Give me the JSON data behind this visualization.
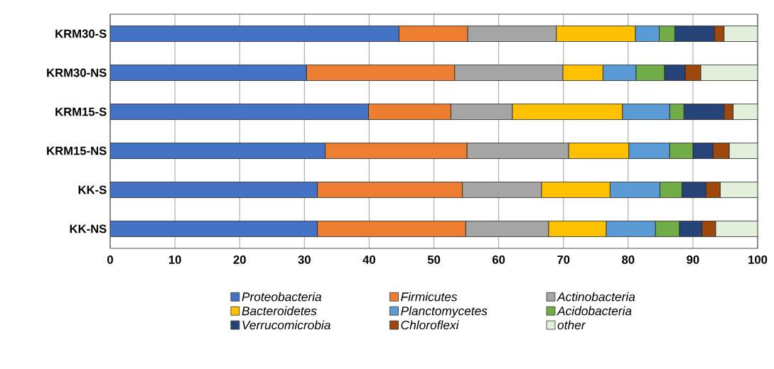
{
  "chart_data": {
    "type": "bar",
    "orientation": "horizontal",
    "stacked": true,
    "categories": [
      "KRM30-S",
      "KRM30-NS",
      "KRM15-S",
      "KRM15-NS",
      "KK-S",
      "KK-NS"
    ],
    "xlim": [
      0,
      100
    ],
    "xticks": [
      0,
      10,
      20,
      30,
      40,
      50,
      60,
      70,
      80,
      90,
      100
    ],
    "grid": "x",
    "legend": "bottom",
    "series": [
      {
        "name": "*Proteobacteria*",
        "color": "#4472c4",
        "values": [
          44.6,
          30.3,
          39.9,
          33.2,
          32.0,
          32.0
        ]
      },
      {
        "name": "*Firmicutes*",
        "color": "#ed7d31",
        "values": [
          10.6,
          22.9,
          12.7,
          21.9,
          22.4,
          22.9
        ]
      },
      {
        "name": "*Actinobacteria*",
        "color": "#a5a5a5",
        "values": [
          13.7,
          16.7,
          9.5,
          15.7,
          12.2,
          12.8
        ]
      },
      {
        "name": "*Bacteroidetes*",
        "color": "#ffc000",
        "values": [
          12.2,
          6.2,
          17.0,
          9.3,
          10.6,
          8.9
        ]
      },
      {
        "name": "*Planctomycetes*",
        "color": "#5b9bd5",
        "values": [
          3.7,
          5.1,
          7.3,
          6.3,
          7.7,
          7.6
        ]
      },
      {
        "name": "*Acidobacteria*",
        "color": "#70ad47",
        "values": [
          2.4,
          4.4,
          2.2,
          3.6,
          3.4,
          3.7
        ]
      },
      {
        "name": "*Verrucomicrobia*",
        "color": "#264478",
        "values": [
          6.1,
          3.2,
          6.2,
          3.1,
          3.7,
          3.5
        ]
      },
      {
        "name": "*Chloroflexi*",
        "color": "#9e480e",
        "values": [
          1.5,
          2.4,
          1.4,
          2.5,
          2.2,
          2.1
        ]
      },
      {
        "name": "*other*",
        "color": "#e2efda",
        "values": [
          5.2,
          8.8,
          3.8,
          4.4,
          5.8,
          6.5
        ]
      }
    ]
  }
}
